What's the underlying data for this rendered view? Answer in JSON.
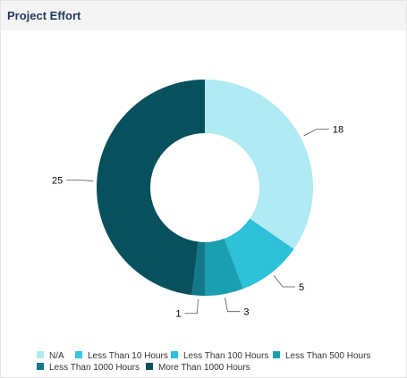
{
  "panel": {
    "title": "Project Effort"
  },
  "chart_data": {
    "type": "pie",
    "subtype": "donut",
    "title": "",
    "categories": [
      "N/A",
      "Less Than 10 Hours",
      "Less Than 100 Hours",
      "Less Than 500 Hours",
      "Less Than 1000 Hours",
      "More Than 1000 Hours"
    ],
    "values": [
      18,
      0,
      5,
      3,
      1,
      25
    ],
    "data_labels": [
      "18",
      "",
      "5",
      "3",
      "1",
      "25"
    ],
    "colors": [
      "#b0eaf2",
      "#35c6dd",
      "#2cc0d9",
      "#1b9eb0",
      "#12788a",
      "#07505e"
    ],
    "legend_position": "bottom"
  },
  "legend": {
    "items": [
      {
        "label": "N/A",
        "color": "#b0eaf2"
      },
      {
        "label": "Less Than 10 Hours",
        "color": "#35c6dd"
      },
      {
        "label": "Less Than 100 Hours",
        "color": "#2cc0d9"
      },
      {
        "label": "Less Than 500 Hours",
        "color": "#1b9eb0"
      },
      {
        "label": "Less Than 1000 Hours",
        "color": "#12788a"
      },
      {
        "label": "More Than 1000 Hours",
        "color": "#07505e"
      }
    ]
  }
}
